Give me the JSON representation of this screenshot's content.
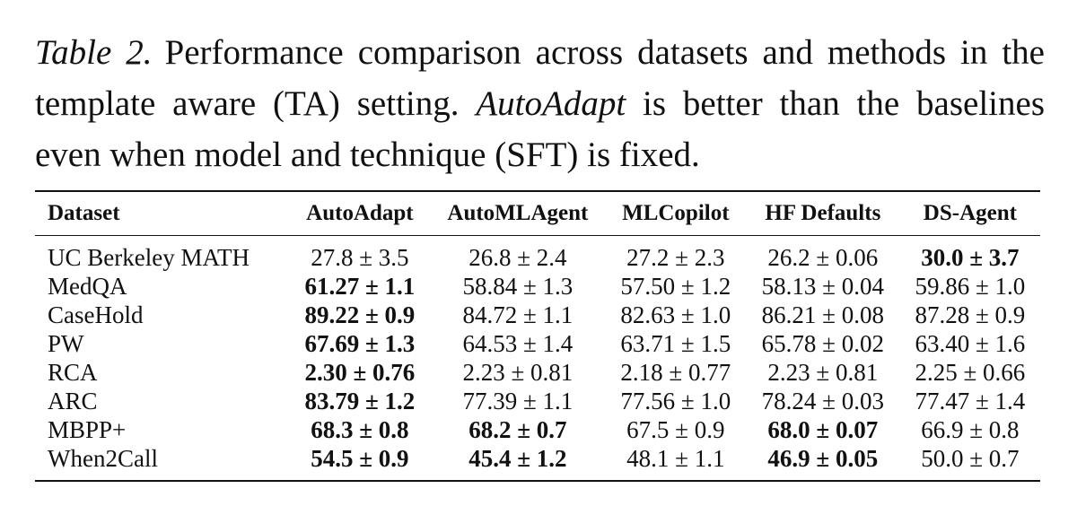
{
  "caption": {
    "label": "Table 2.",
    "part1": "Performance comparison across datasets and methods in the template aware (TA) setting.",
    "emphasis": "AutoAdapt",
    "part2": "is better than the baselines even when model and technique (SFT) is fixed."
  },
  "table": {
    "headers": [
      "Dataset",
      "AutoAdapt",
      "AutoMLAgent",
      "MLCopilot",
      "HF Defaults",
      "DS-Agent"
    ],
    "rows": [
      {
        "dataset": "UC Berkeley MATH",
        "cells": [
          {
            "text": "27.8 ± 3.5",
            "bold": false
          },
          {
            "text": "26.8 ± 2.4",
            "bold": false
          },
          {
            "text": "27.2 ± 2.3",
            "bold": false
          },
          {
            "text": "26.2 ± 0.06",
            "bold": false
          },
          {
            "text": "30.0 ± 3.7",
            "bold": true
          }
        ]
      },
      {
        "dataset": "MedQA",
        "cells": [
          {
            "text": "61.27 ± 1.1",
            "bold": true
          },
          {
            "text": "58.84 ± 1.3",
            "bold": false
          },
          {
            "text": "57.50 ± 1.2",
            "bold": false
          },
          {
            "text": "58.13 ± 0.04",
            "bold": false
          },
          {
            "text": "59.86 ± 1.0",
            "bold": false
          }
        ]
      },
      {
        "dataset": "CaseHold",
        "cells": [
          {
            "text": "89.22 ± 0.9",
            "bold": true
          },
          {
            "text": "84.72 ± 1.1",
            "bold": false
          },
          {
            "text": "82.63 ± 1.0",
            "bold": false
          },
          {
            "text": "86.21 ± 0.08",
            "bold": false
          },
          {
            "text": "87.28 ± 0.9",
            "bold": false
          }
        ]
      },
      {
        "dataset": "PW",
        "cells": [
          {
            "text": "67.69 ± 1.3",
            "bold": true
          },
          {
            "text": "64.53 ± 1.4",
            "bold": false
          },
          {
            "text": "63.71 ± 1.5",
            "bold": false
          },
          {
            "text": "65.78 ± 0.02",
            "bold": false
          },
          {
            "text": "63.40 ± 1.6",
            "bold": false
          }
        ]
      },
      {
        "dataset": "RCA",
        "cells": [
          {
            "text": "2.30 ± 0.76",
            "bold": true
          },
          {
            "text": "2.23 ± 0.81",
            "bold": false
          },
          {
            "text": "2.18 ± 0.77",
            "bold": false
          },
          {
            "text": "2.23 ± 0.81",
            "bold": false
          },
          {
            "text": "2.25 ± 0.66",
            "bold": false
          }
        ]
      },
      {
        "dataset": "ARC",
        "cells": [
          {
            "text": "83.79 ± 1.2",
            "bold": true
          },
          {
            "text": "77.39 ± 1.1",
            "bold": false
          },
          {
            "text": "77.56 ± 1.0",
            "bold": false
          },
          {
            "text": "78.24 ± 0.03",
            "bold": false
          },
          {
            "text": "77.47 ± 1.4",
            "bold": false
          }
        ]
      },
      {
        "dataset": "MBPP+",
        "cells": [
          {
            "text": "68.3 ± 0.8",
            "bold": true
          },
          {
            "text": "68.2 ± 0.7",
            "bold": true
          },
          {
            "text": "67.5 ± 0.9",
            "bold": false
          },
          {
            "text": "68.0 ± 0.07",
            "bold": true
          },
          {
            "text": "66.9 ± 0.8",
            "bold": false
          }
        ]
      },
      {
        "dataset": "When2Call",
        "cells": [
          {
            "text": "54.5 ± 0.9",
            "bold": true
          },
          {
            "text": "45.4 ± 1.2",
            "bold": true
          },
          {
            "text": "48.1 ± 1.1",
            "bold": false
          },
          {
            "text": "46.9 ± 0.05",
            "bold": true
          },
          {
            "text": "50.0 ± 0.7",
            "bold": false
          }
        ]
      }
    ]
  }
}
